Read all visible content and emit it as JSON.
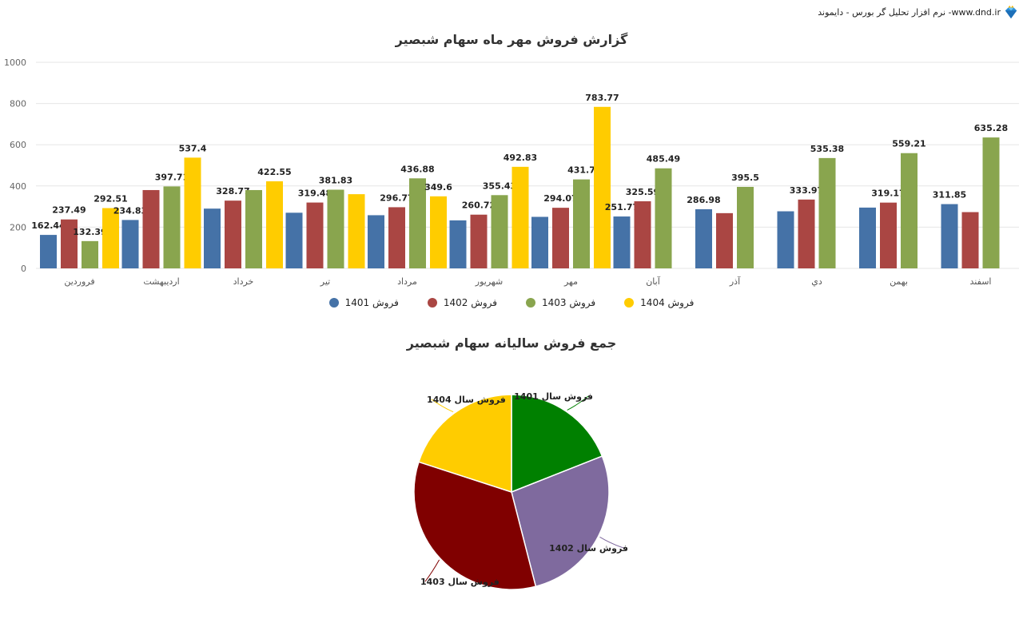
{
  "header": {
    "brand_text": "نرم افزار تحلیل گر بورس - دایموند -www.dnd.ir",
    "brand_icon": "diamond-icon"
  },
  "chart_data": [
    {
      "type": "bar",
      "title": "گزارش فروش مهر ماه سهام شبصیر",
      "xlabel": "",
      "ylabel": "",
      "ylim": [
        0,
        1000
      ],
      "yticks": [
        0,
        200,
        400,
        600,
        800,
        1000
      ],
      "grid": true,
      "legend_position": "bottom",
      "categories": [
        "فروردین",
        "اردیبهشت",
        "خرداد",
        "تیر",
        "مرداد",
        "شهریور",
        "مهر",
        "آبان",
        "آذر",
        "دي",
        "بهمن",
        "اسفند"
      ],
      "series": [
        {
          "name": "فروش 1401",
          "color": "#4572a7",
          "values": [
            162.44,
            234.83,
            290,
            270,
            258,
            233,
            250,
            251.77,
            286.98,
            277,
            295,
            311.85
          ]
        },
        {
          "name": "فروش 1402",
          "color": "#aa4643",
          "values": [
            237.49,
            380,
            328.77,
            319.48,
            296.77,
            260.72,
            294.07,
            325.59,
            268,
            333.97,
            319.17,
            273
          ]
        },
        {
          "name": "فروش 1403",
          "color": "#89a54e",
          "values": [
            132.39,
            397.71,
            380,
            381.83,
            436.88,
            355.43,
            431.7,
            485.49,
            395.5,
            535.38,
            559.21,
            635.28
          ]
        },
        {
          "name": "فروش 1404",
          "color": "#ffcc00",
          "values": [
            292.51,
            537.4,
            422.55,
            360,
            349.6,
            492.83,
            783.77,
            null,
            null,
            null,
            null,
            null
          ]
        }
      ],
      "data_labels": [
        {
          "category": "فروردین",
          "labels": [
            "162.44",
            "237.49",
            "132.39",
            "292.51"
          ]
        },
        {
          "category": "اردیبهشت",
          "labels": [
            "234.83",
            "",
            "397.71",
            "537.4"
          ]
        },
        {
          "category": "خرداد",
          "labels": [
            "",
            "328.77",
            "",
            "422.55"
          ]
        },
        {
          "category": "تیر",
          "labels": [
            "",
            "319.48",
            "381.83",
            ""
          ]
        },
        {
          "category": "مرداد",
          "labels": [
            "",
            "296.77",
            "436.88",
            "349.6"
          ]
        },
        {
          "category": "شهریور",
          "labels": [
            "",
            "260.72",
            "355.43",
            "492.83"
          ]
        },
        {
          "category": "مهر",
          "labels": [
            "",
            "294.07",
            "431.7",
            "783.77"
          ]
        },
        {
          "category": "آبان",
          "labels": [
            "251.77",
            "325.59",
            "485.49",
            ""
          ]
        },
        {
          "category": "آذر",
          "labels": [
            "286.98",
            "",
            "395.5",
            ""
          ]
        },
        {
          "category": "دي",
          "labels": [
            "",
            "333.97",
            "535.38",
            ""
          ]
        },
        {
          "category": "بهمن",
          "labels": [
            "",
            "319.17",
            "559.21",
            ""
          ]
        },
        {
          "category": "اسفند",
          "labels": [
            "311.85",
            "",
            "635.28",
            ""
          ]
        }
      ]
    },
    {
      "type": "pie",
      "title": "جمع فروش سالیانه سهام شبصیر",
      "categories": [
        "فروش سال 1401",
        "فروش سال 1402",
        "فروش سال 1403",
        "فروش سال 1404"
      ],
      "values": [
        19,
        27,
        34,
        20
      ],
      "colors": [
        "#008000",
        "#7f6a9e",
        "#800000",
        "#ffcc00"
      ],
      "legend_position": "none (callout labels)"
    }
  ]
}
